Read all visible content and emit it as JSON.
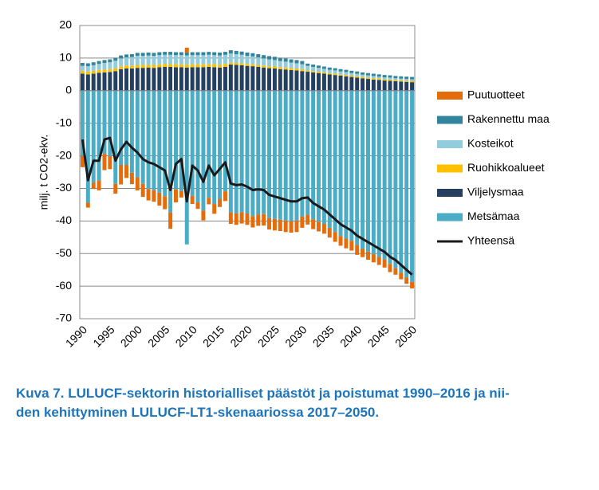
{
  "chart_data": {
    "type": "stacked-bar-line",
    "y_label": "milj. t CO2-ekv.",
    "caption": [
      "Kuva 7. LULUCF-sektorin historialliset päästöt ja poistumat 1990–2016 ja nii-",
      "den kehittyminen LULUCF-LT1-skenaariossa 2017–2050."
    ],
    "categories": [
      "1990",
      null,
      null,
      null,
      null,
      "1995",
      null,
      null,
      null,
      null,
      "2000",
      null,
      null,
      null,
      null,
      "2005",
      null,
      null,
      null,
      null,
      "2010",
      null,
      null,
      null,
      null,
      "2015",
      null,
      null,
      null,
      null,
      "2020",
      null,
      null,
      null,
      null,
      "2025",
      null,
      null,
      null,
      null,
      "2030",
      null,
      null,
      null,
      null,
      "2035",
      null,
      null,
      null,
      null,
      "2040",
      null,
      null,
      null,
      null,
      "2045",
      null,
      null,
      null,
      null,
      "2050"
    ],
    "ylim": [
      -70,
      20
    ],
    "yticks": [
      -70,
      -60,
      -50,
      -40,
      -30,
      -20,
      -10,
      0,
      10,
      20
    ],
    "grid": true,
    "series": [
      {
        "name": "Puutuotteet",
        "kind": "bar",
        "color": "#e46c0a",
        "values": [
          -3.5,
          -1.5,
          -2,
          -3,
          -5,
          -4,
          -3,
          -6,
          -4,
          -3.5,
          -4,
          -4,
          -3.5,
          -3.5,
          -4,
          -4,
          -5,
          -4,
          -2,
          1.5,
          -2.5,
          -2,
          -3,
          -2,
          -3,
          -2.5,
          -3,
          -3.5,
          -3.5,
          -3.5,
          -3.5,
          -3.5,
          -3.5,
          -3.5,
          -3.5,
          -3.5,
          -3.5,
          -3.5,
          -3.5,
          -3.5,
          -3.5,
          -3,
          -3,
          -3,
          -3,
          -3,
          -3,
          -3,
          -3,
          -3,
          -3,
          -2.5,
          -2.5,
          -2.5,
          -2.5,
          -2.5,
          -2.5,
          -2,
          -2,
          -2,
          -2
        ]
      },
      {
        "name": "Rakennettu maa",
        "kind": "bar",
        "color": "#31849b",
        "values": [
          0.9,
          0.9,
          0.9,
          0.9,
          0.9,
          0.9,
          0.9,
          0.9,
          0.9,
          0.9,
          0.9,
          0.9,
          0.9,
          0.9,
          0.9,
          0.9,
          0.9,
          0.9,
          0.9,
          0.9,
          0.9,
          0.9,
          0.9,
          0.9,
          0.9,
          0.9,
          0.9,
          1,
          1,
          1,
          1,
          1,
          1,
          1,
          1,
          1,
          1,
          1,
          1,
          1,
          1,
          0.7,
          0.7,
          0.7,
          0.7,
          0.7,
          0.7,
          0.7,
          0.7,
          0.7,
          0.7,
          0.7,
          0.7,
          0.7,
          0.7,
          0.7,
          0.7,
          0.7,
          0.7,
          0.7,
          0.7
        ]
      },
      {
        "name": "Kosteikot",
        "kind": "bar",
        "color": "#93cddd",
        "values": [
          1.5,
          1.6,
          1.7,
          1.8,
          2,
          2.1,
          2.3,
          2.4,
          2.5,
          2.6,
          2.8,
          2.8,
          2.8,
          2.8,
          2.8,
          2.8,
          2.8,
          2.8,
          2.8,
          2.8,
          2.8,
          2.8,
          2.8,
          2.8,
          2.8,
          2.8,
          2.8,
          2.8,
          2.7,
          2.6,
          2.5,
          2.4,
          2.3,
          2.2,
          2.1,
          2,
          1.9,
          1.8,
          1.7,
          1.6,
          1.5,
          1.4,
          1.3,
          1.2,
          1.1,
          1,
          1,
          0.9,
          0.9,
          0.8,
          0.8,
          0.7,
          0.7,
          0.7,
          0.6,
          0.6,
          0.6,
          0.5,
          0.5,
          0.5,
          0.5
        ]
      },
      {
        "name": "Ruohikkoalueet",
        "kind": "bar",
        "color": "#ffc000",
        "values": [
          0.9,
          0.9,
          0.9,
          0.9,
          0.9,
          0.9,
          0.9,
          0.9,
          0.9,
          0.9,
          0.9,
          0.9,
          0.9,
          0.9,
          0.9,
          0.9,
          0.9,
          0.9,
          0.9,
          0.9,
          0.9,
          0.9,
          0.9,
          0.9,
          0.9,
          0.9,
          0.9,
          0.6,
          0.6,
          0.6,
          0.6,
          0.6,
          0.6,
          0.6,
          0.6,
          0.6,
          0.6,
          0.6,
          0.6,
          0.6,
          0.6,
          0.4,
          0.4,
          0.4,
          0.4,
          0.4,
          0.4,
          0.4,
          0.4,
          0.4,
          0.4,
          0.4,
          0.4,
          0.4,
          0.4,
          0.4,
          0.4,
          0.4,
          0.4,
          0.4,
          0.4
        ]
      },
      {
        "name": "Viljelysmaa",
        "kind": "bar",
        "color": "#243f60",
        "values": [
          5.2,
          5,
          5.2,
          5.5,
          5.6,
          5.7,
          6,
          6.6,
          6.8,
          6.8,
          7,
          7,
          7.1,
          7,
          7.2,
          7.3,
          7.3,
          7.2,
          7.2,
          7.1,
          7.2,
          7.2,
          7.2,
          7.3,
          7.2,
          7.1,
          7.3,
          8,
          7.9,
          7.8,
          7.6,
          7.5,
          7.3,
          7.1,
          6.9,
          6.8,
          6.6,
          6.5,
          6.3,
          6.2,
          6,
          5.8,
          5.6,
          5.4,
          5.2,
          5,
          4.8,
          4.6,
          4.4,
          4.2,
          4,
          3.8,
          3.6,
          3.4,
          3.3,
          3.1,
          3,
          2.9,
          2.8,
          2.7,
          2.6
        ]
      },
      {
        "name": "Metsämaa",
        "kind": "bar",
        "color": "#4bacc6",
        "values": [
          -20,
          -34.4,
          -28.2,
          -27.6,
          -19.4,
          -20.1,
          -28.6,
          -22.8,
          -22.8,
          -25.2,
          -26.6,
          -28.6,
          -30.2,
          -30.6,
          -31.3,
          -32.4,
          -37.4,
          -30.3,
          -30.8,
          -47.2,
          -32.3,
          -34.3,
          -36.8,
          -32.9,
          -34.8,
          -33.2,
          -30.9,
          -37.4,
          -37.7,
          -37.3,
          -37.7,
          -38.5,
          -38,
          -37.9,
          -39.1,
          -39.4,
          -39.6,
          -39.9,
          -40.1,
          -39.9,
          -38.6,
          -38.1,
          -39.5,
          -40.2,
          -40.9,
          -42.1,
          -43.4,
          -44.6,
          -45.4,
          -46.1,
          -47.4,
          -48.6,
          -49.4,
          -50.2,
          -51,
          -51.8,
          -53.2,
          -54.5,
          -55.9,
          -57.3,
          -58.7
        ]
      },
      {
        "name": "Yhteensä",
        "kind": "line",
        "color": "#1a1a1a",
        "values": [
          -15,
          -27.5,
          -21.5,
          -21.5,
          -15,
          -14.5,
          -21.5,
          -18,
          -15.7,
          -17.5,
          -19,
          -21,
          -22,
          -22.5,
          -23.5,
          -24.5,
          -30.5,
          -22.5,
          -21,
          -34,
          -23,
          -24.5,
          -28,
          -23,
          -26,
          -24,
          -22,
          -28.5,
          -29,
          -28.8,
          -29.5,
          -30.5,
          -30.3,
          -30.5,
          -32,
          -32.5,
          -33,
          -33.5,
          -34,
          -34,
          -33,
          -32.8,
          -34.5,
          -35.5,
          -36.5,
          -38,
          -39.5,
          -41,
          -42,
          -43,
          -44.5,
          -45.5,
          -46.5,
          -47.5,
          -48.5,
          -49.5,
          -51,
          -52,
          -53.5,
          -55,
          -56.5
        ]
      }
    ]
  }
}
